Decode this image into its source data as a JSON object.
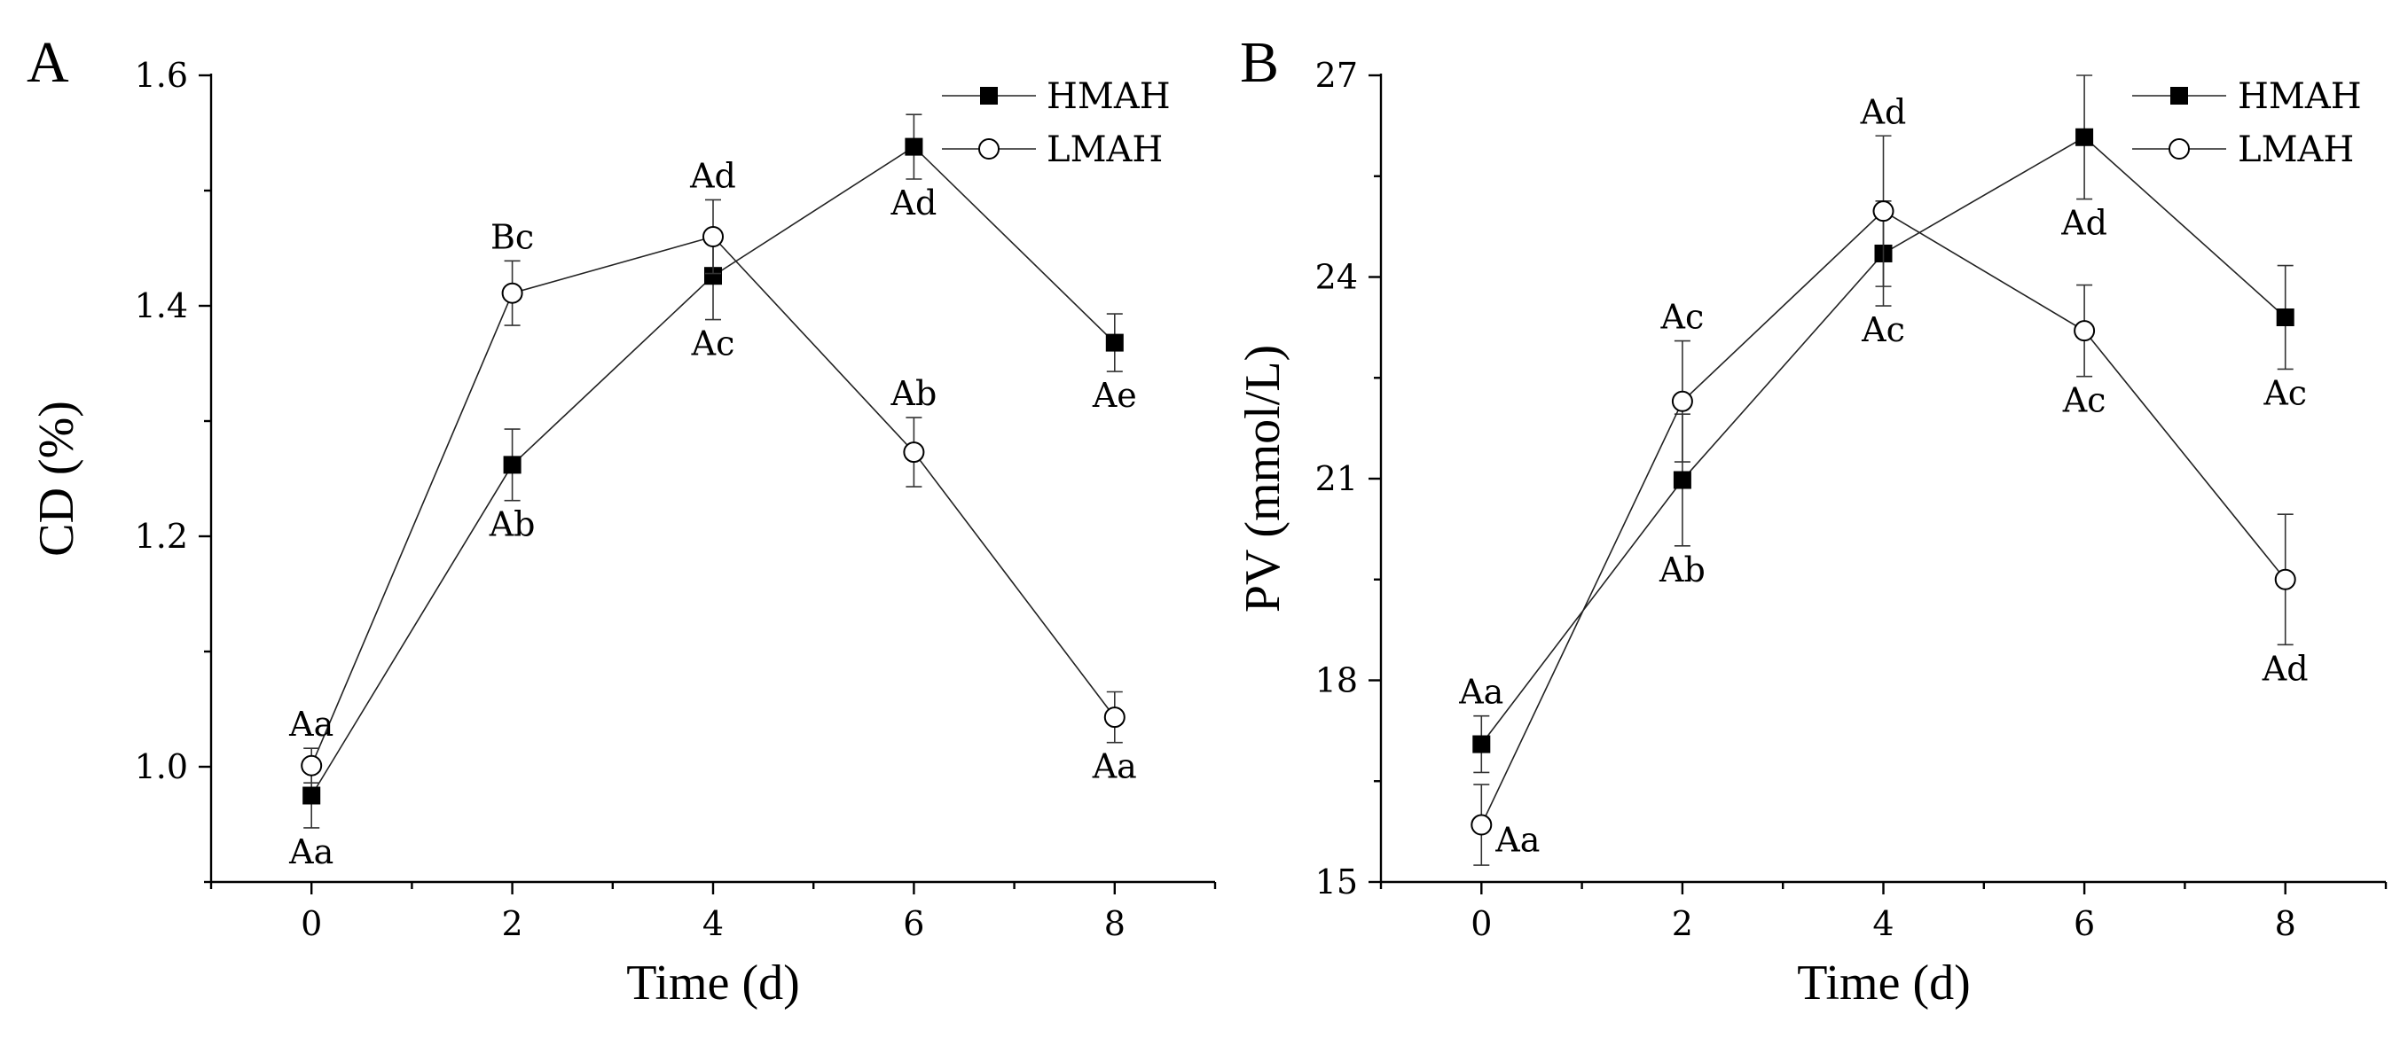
{
  "chart_data": [
    {
      "type": "line",
      "panel_label": "A",
      "xlabel": "Time (d)",
      "ylabel": "CD (%)",
      "xlim": [
        -1,
        9
      ],
      "ylim": [
        0.9,
        1.6
      ],
      "xticks": [
        0,
        2,
        4,
        6,
        8
      ],
      "yticks": [
        1.0,
        1.2,
        1.4,
        1.6
      ],
      "xtick_labels": [
        "0",
        "2",
        "4",
        "6",
        "8"
      ],
      "ytick_labels": [
        "1.0",
        "1.2",
        "1.4",
        "1.6"
      ],
      "legend_position": "top-right",
      "series": [
        {
          "name": "HMAH",
          "marker": "filled-square",
          "color": "#000000",
          "x": [
            0,
            2,
            4,
            6,
            8
          ],
          "y": [
            0.975,
            1.262,
            1.426,
            1.538,
            1.368
          ],
          "error": [
            0.028,
            0.031,
            0.038,
            0.028,
            0.025
          ],
          "labels": [
            "Aa",
            "Ab",
            "Ac",
            "Ad",
            "Ae"
          ],
          "label_position": [
            "below",
            "below",
            "below",
            "below",
            "below"
          ]
        },
        {
          "name": "LMAH",
          "marker": "open-circle",
          "color": "#000000",
          "x": [
            0,
            2,
            4,
            6,
            8
          ],
          "y": [
            1.001,
            1.411,
            1.46,
            1.273,
            1.043
          ],
          "error": [
            0.015,
            0.028,
            0.032,
            0.03,
            0.022
          ],
          "labels": [
            "Aa",
            "Bc",
            "Ad",
            "Ab",
            "Aa"
          ],
          "label_position": [
            "above",
            "above",
            "above",
            "above",
            "below"
          ]
        }
      ]
    },
    {
      "type": "line",
      "panel_label": "B",
      "xlabel": "Time (d)",
      "ylabel": "PV (mmol/L)",
      "xlim": [
        -1,
        9
      ],
      "ylim": [
        15,
        27
      ],
      "xticks": [
        0,
        2,
        4,
        6,
        8
      ],
      "yticks": [
        15,
        18,
        21,
        24,
        27
      ],
      "xtick_labels": [
        "0",
        "2",
        "4",
        "6",
        "8"
      ],
      "ytick_labels": [
        "15",
        "18",
        "21",
        "24",
        "27"
      ],
      "legend_position": "top-right",
      "series": [
        {
          "name": "HMAH",
          "marker": "filled-square",
          "color": "#000000",
          "x": [
            0,
            2,
            4,
            6,
            8
          ],
          "y": [
            17.05,
            20.98,
            24.35,
            26.08,
            23.4
          ],
          "error": [
            0.42,
            0.98,
            0.78,
            0.92,
            0.77
          ],
          "labels": [
            "Aa",
            "Ab",
            "Ac",
            "Ad",
            "Ac"
          ],
          "label_position": [
            "above",
            "below",
            "below",
            "below",
            "below"
          ]
        },
        {
          "name": "LMAH",
          "marker": "open-circle",
          "color": "#000000",
          "x": [
            0,
            2,
            4,
            6,
            8
          ],
          "y": [
            15.85,
            22.15,
            24.98,
            23.2,
            19.5
          ],
          "error": [
            0.6,
            0.9,
            1.12,
            0.68,
            0.97
          ],
          "labels": [
            "Aa",
            "Ac",
            "Ad",
            "Ac",
            "Ad"
          ],
          "label_position": [
            "right",
            "above",
            "above",
            "below",
            "below"
          ]
        }
      ]
    }
  ]
}
